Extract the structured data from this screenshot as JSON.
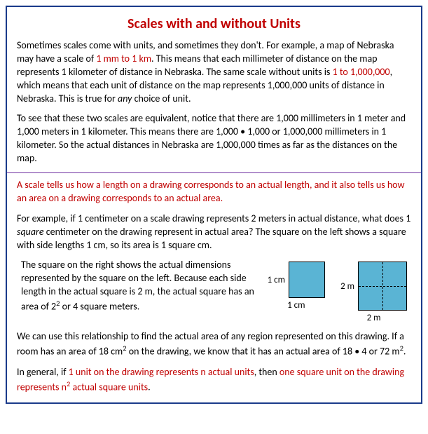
{
  "title": "Scales with and without Units",
  "para1_a": "Sometimes scales come with units, and sometimes they don't. For example, a map of Nebraska may have a scale of ",
  "para1_red1": "1 mm to 1 km",
  "para1_b": ". This means that each millimeter of distance on the map represents 1 kilometer of distance in Nebraska. The same scale without units is ",
  "para1_red2": "1 to 1,000,000",
  "para1_c": ", which means that each unit of distance on the map represents 1,000,000 units of distance in Nebraska. This is true for ",
  "para1_italic": "any",
  "para1_d": " choice of unit.",
  "para2": "To see that these two scales are equivalent, notice that there are 1,000 millimeters in 1 meter and 1,000 meters in 1 kilometer. This means there are 1,000 • 1,000 or 1,000,000 millimeters in 1 kilometer. So the actual distances in Nebraska are 1,000,000 times as far as the distances on the map.",
  "para3": "A scale tells us how a length on a drawing corresponds to an actual length, and it also tells us how an area on a drawing corresponds to an actual area.",
  "para4_a": "For example, if 1 centimeter on a scale drawing represents 2 meters in actual distance, what does 1 ",
  "para4_italic": "square",
  "para4_b": " centimeter on the drawing represent in actual area? The square on the left shows a square with side lengths 1 cm, so its area is 1 square cm.",
  "example_text_a": "The square on the right shows the actual dimensions represented by the square on the left. Because each side length in the actual square is 2 m, the actual square has an area of 2",
  "example_text_sup": "2",
  "example_text_b": " or 4 square meters.",
  "sq1_label": "1 cm",
  "sq2_label": "2 m",
  "para5_a": "We can use this relationship to find the actual area of any region represented on this drawing. If a room has an area of 18 cm",
  "para5_sup1": "2",
  "para5_b": " on the drawing, we know that it has an actual area of 18 • 4 or 72 m",
  "para5_sup2": "2",
  "para5_c": ".",
  "para6_a": "In general, if ",
  "para6_red1": "1 unit on the drawing represents n actual units",
  "para6_b": ", then ",
  "para6_red2_a": "one square unit on the drawing represents n",
  "para6_red2_sup": "2",
  "para6_red2_b": " actual square units",
  "para6_c": ".",
  "colors": {
    "accent_red": "#c00000",
    "frame_blue": "#1a3a8a",
    "divider_purple": "#7030a0",
    "square_fill": "#5ab4d4"
  }
}
